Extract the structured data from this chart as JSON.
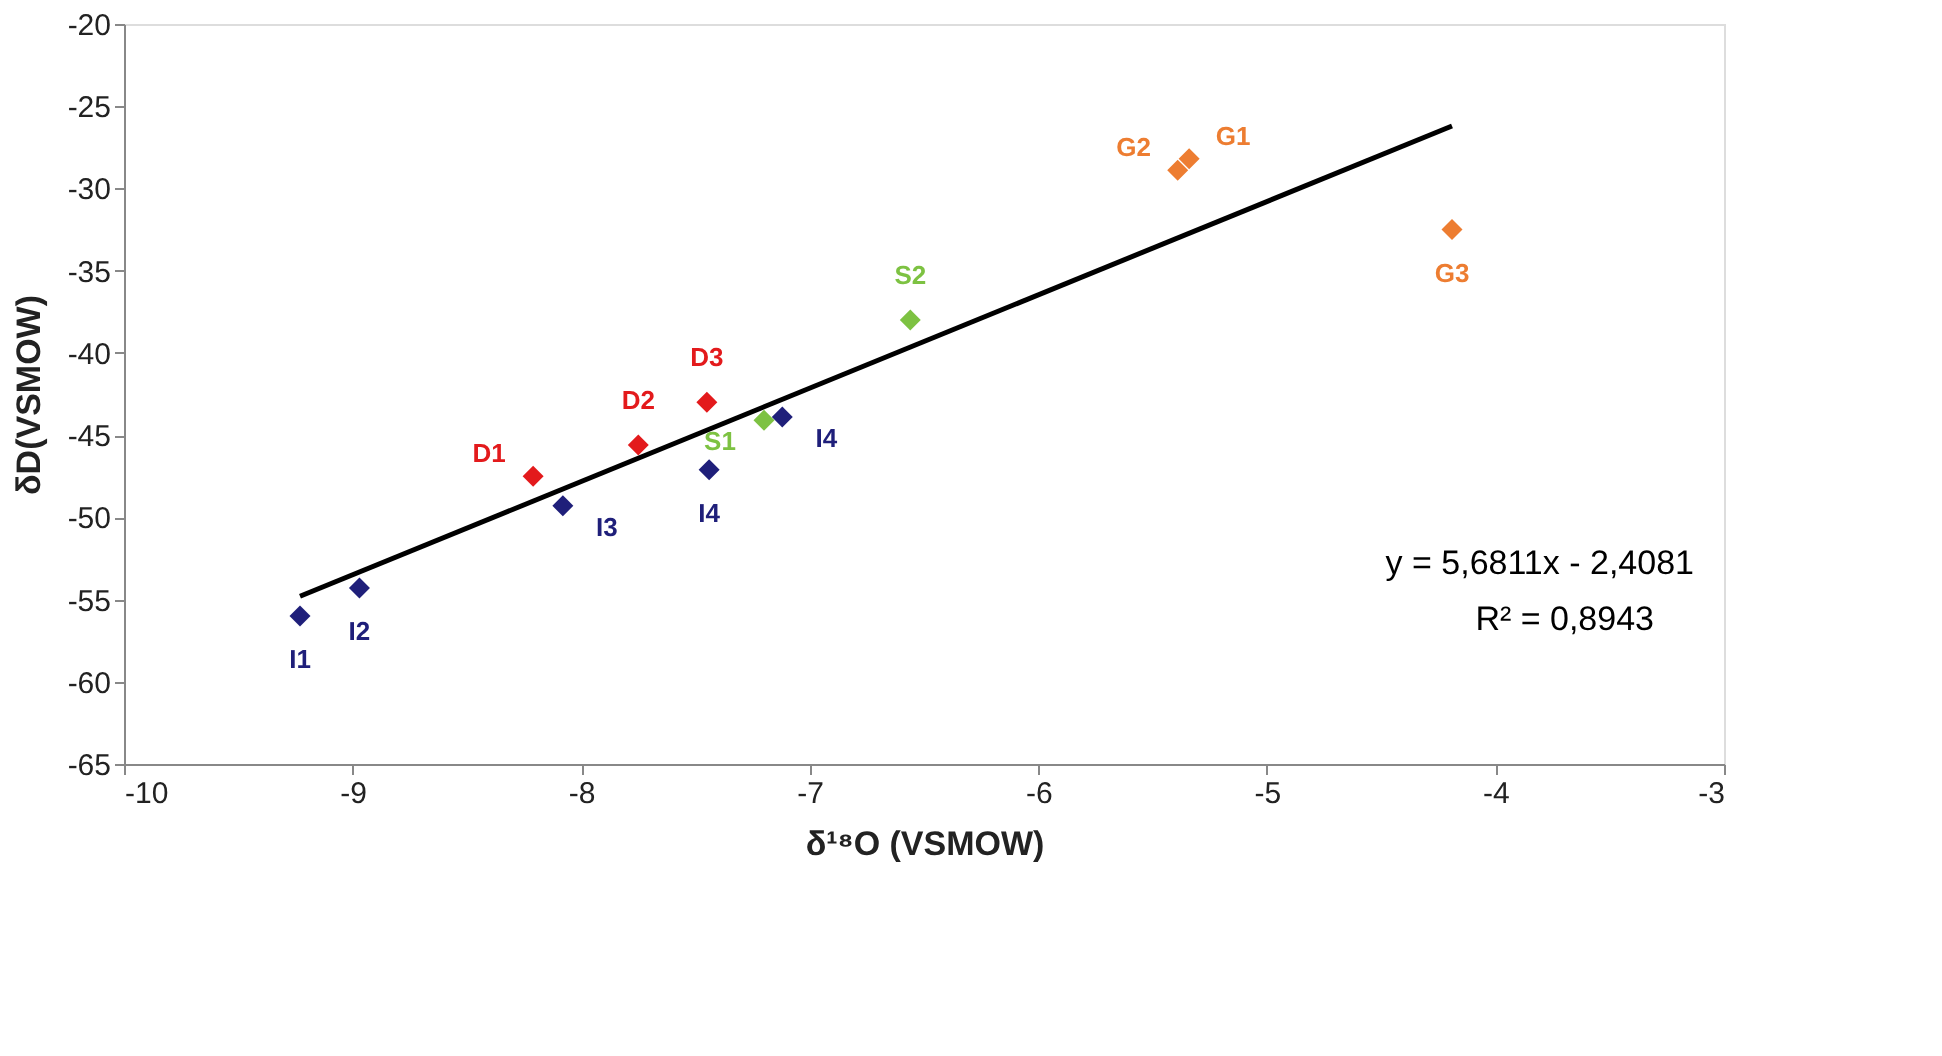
{
  "chart_data": {
    "type": "scatter",
    "xlabel": "δ¹⁸O (VSMOW)",
    "ylabel": "δD(VSMOW)",
    "xlim": [
      -10,
      -3
    ],
    "xticks": [
      -10,
      -9,
      -8,
      -7,
      -6,
      -5,
      -4,
      -3
    ],
    "ylim": [
      -65,
      -20
    ],
    "yticks": [
      -65,
      -60,
      -55,
      -50,
      -45,
      -40,
      -35,
      -30,
      -25,
      -20
    ],
    "grid": false,
    "marker": "diamond",
    "series": [
      {
        "color": "#1f1f7a",
        "x": [
          -9.23,
          -8.97,
          -8.08,
          -7.44,
          -7.12
        ],
        "values": [
          -56.0,
          -54.3,
          -49.3,
          -47.1,
          -43.9
        ]
      },
      {
        "color": "#e31a1c",
        "x": [
          -8.21,
          -7.75,
          -7.45
        ],
        "values": [
          -47.5,
          -45.6,
          -43.0
        ]
      },
      {
        "color": "#7dc242",
        "x": [
          -7.2,
          -6.56
        ],
        "values": [
          -44.1,
          -38.0
        ]
      },
      {
        "color": "#ed7d31",
        "x": [
          -5.39,
          -5.34,
          -4.19
        ],
        "values": [
          -28.9,
          -28.2,
          -32.5
        ]
      },
      {
        "type": "line",
        "color": "#000000",
        "marker": "none",
        "line_style": "solid",
        "x": [
          -9.23,
          -4.19
        ],
        "values": [
          -54.8,
          -26.2
        ]
      }
    ],
    "annotations": [
      {
        "text": "I1",
        "x": -9.23,
        "y": -56.0
      },
      {
        "text": "I2",
        "x": -8.97,
        "y": -54.3
      },
      {
        "text": "I3",
        "x": -8.08,
        "y": -49.3
      },
      {
        "text": "I4",
        "x": -7.44,
        "y": -47.1
      },
      {
        "text": "I4",
        "x": -7.12,
        "y": -43.9
      },
      {
        "text": "D1",
        "x": -8.21,
        "y": -47.5
      },
      {
        "text": "D2",
        "x": -7.75,
        "y": -45.6
      },
      {
        "text": "D3",
        "x": -7.45,
        "y": -43.0
      },
      {
        "text": "S1",
        "x": -7.2,
        "y": -44.1
      },
      {
        "text": "S2",
        "x": -6.56,
        "y": -38.0
      },
      {
        "text": "G2",
        "x": -5.39,
        "y": -28.9
      },
      {
        "text": "G1",
        "x": -5.34,
        "y": -28.2
      },
      {
        "text": "G3",
        "x": -4.19,
        "y": -32.5
      },
      "y = 5,6811x - 2,4081",
      "R² = 0,8943"
    ]
  }
}
